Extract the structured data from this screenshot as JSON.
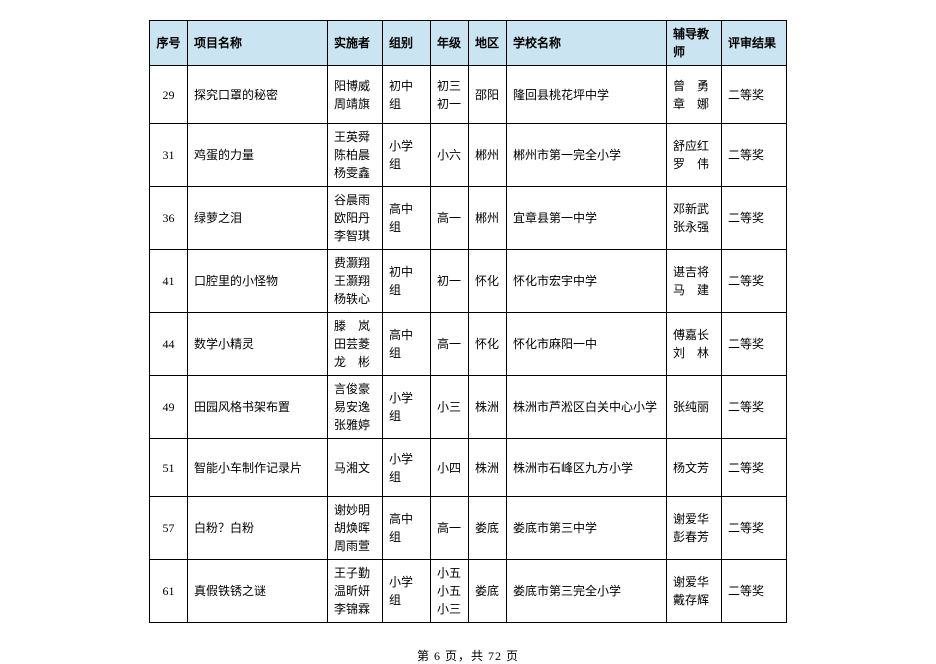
{
  "table": {
    "headers": [
      "序号",
      "项目名称",
      "实施者",
      "组别",
      "年级",
      "地区",
      "学校名称",
      "辅导教师",
      "评审结果"
    ],
    "rows": [
      {
        "seq": "29",
        "name": "探究口罩的秘密",
        "implementers": "阳博威\n周靖旗",
        "group": "初中组",
        "grade": "初三\n初一",
        "region": "邵阳",
        "school": "隆回县桃花坪中学",
        "teachers": "曾　勇\n章　娜",
        "result": "二等奖"
      },
      {
        "seq": "31",
        "name": "鸡蛋的力量",
        "implementers": "王英舜\n陈柏晨\n杨雯鑫",
        "group": "小学组",
        "grade": "小六",
        "region": "郴州",
        "school": "郴州市第一完全小学",
        "teachers": "舒应红\n罗　伟",
        "result": "二等奖"
      },
      {
        "seq": "36",
        "name": "绿萝之泪",
        "implementers": "谷晨雨\n欧阳丹\n李智琪",
        "group": "高中组",
        "grade": "高一",
        "region": "郴州",
        "school": "宜章县第一中学",
        "teachers": "邓新武\n张永强",
        "result": "二等奖"
      },
      {
        "seq": "41",
        "name": "口腔里的小怪物",
        "implementers": "费灏翔\n王灏翔\n杨轶心",
        "group": "初中组",
        "grade": "初一",
        "region": "怀化",
        "school": "怀化市宏宇中学",
        "teachers": "谌吉将\n马　建",
        "result": "二等奖"
      },
      {
        "seq": "44",
        "name": "数学小精灵",
        "implementers": "滕　岚\n田芸菱\n龙　彬",
        "group": "高中组",
        "grade": "高一",
        "region": "怀化",
        "school": "怀化市麻阳一中",
        "teachers": "傅嘉长\n刘　林",
        "result": "二等奖"
      },
      {
        "seq": "49",
        "name": "田园风格书架布置",
        "implementers": "言俊豪\n易安逸\n张雅婷",
        "group": "小学组",
        "grade": "小三",
        "region": "株洲",
        "school": "株洲市芦淞区白关中心小学",
        "teachers": "张纯丽",
        "result": "二等奖"
      },
      {
        "seq": "51",
        "name": "智能小车制作记录片",
        "implementers": "马湘文",
        "group": "小学组",
        "grade": "小四",
        "region": "株洲",
        "school": "株洲市石峰区九方小学",
        "teachers": "杨文芳",
        "result": "二等奖"
      },
      {
        "seq": "57",
        "name": "白粉？白粉",
        "implementers": "谢妙明\n胡焕晖\n周雨萱",
        "group": "高中组",
        "grade": "高一",
        "region": "娄底",
        "school": "娄底市第三中学",
        "teachers": "谢爱华\n彭春芳",
        "result": "二等奖"
      },
      {
        "seq": "61",
        "name": "真假铁锈之谜",
        "implementers": "王子勤\n温昕妍\n李锦霖",
        "group": "小学组",
        "grade": "小五\n小五\n小三",
        "region": "娄底",
        "school": "娄底市第三完全小学",
        "teachers": "谢爱华\n戴存辉",
        "result": "二等奖"
      }
    ]
  },
  "pager": {
    "text": "第 6 页，共 72 页"
  },
  "style": {
    "header_bg": "#cae4f2",
    "border_color": "#000000",
    "font_family": "SimSun"
  }
}
